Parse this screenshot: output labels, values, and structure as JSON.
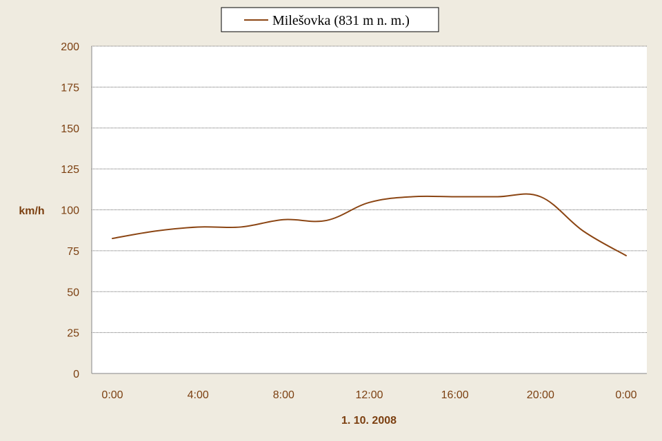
{
  "chart_data": {
    "type": "line",
    "xlabel": "1. 10. 2008",
    "ylabel": "km/h",
    "ylim": [
      0,
      200
    ],
    "yticks": [
      "0",
      "25",
      "50",
      "75",
      "100",
      "125",
      "150",
      "175",
      "200"
    ],
    "xticks": [
      "0:00",
      "4:00",
      "8:00",
      "12:00",
      "16:00",
      "20:00",
      "0:00"
    ],
    "grid": true,
    "legend": "top-center",
    "series": [
      {
        "name": "Milešovka (831 m n. m.)",
        "color": "#8b4513",
        "x": [
          0,
          2,
          4,
          6,
          8,
          10,
          12,
          14,
          16,
          18,
          20,
          22,
          24
        ],
        "y": [
          82.5,
          87,
          89.5,
          89.5,
          94,
          93.5,
          104.5,
          108,
          108,
          108,
          108,
          87,
          72
        ]
      }
    ],
    "colors": {
      "text": "#7b3f10",
      "background": "#efebe0",
      "plot_background": "#ffffff",
      "axis": "#868686",
      "grid": "#666666"
    }
  }
}
